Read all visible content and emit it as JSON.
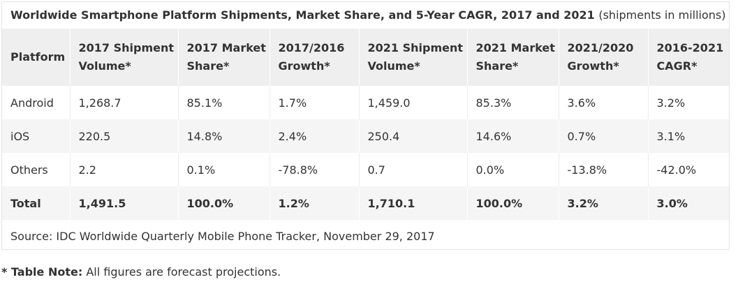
{
  "table": {
    "title": "Worldwide Smartphone Platform Shipments, Market Share, and 5-Year CAGR, 2017 and 2021",
    "title_suffix": "(shipments in millions)",
    "columns": [
      "Platform",
      "2017 Shipment Volume*",
      "2017 Market Share*",
      "2017/2016 Growth*",
      "2021 Shipment Volume*",
      "2021 Market Share*",
      "2021/2020 Growth*",
      "2016-2021 CAGR*"
    ],
    "rows": [
      [
        "Android",
        "1,268.7",
        "85.1%",
        "1.7%",
        "1,459.0",
        "85.3%",
        "3.6%",
        "3.2%"
      ],
      [
        "iOS",
        "220.5",
        "14.8%",
        "2.4%",
        "250.4",
        "14.6%",
        "0.7%",
        "3.1%"
      ],
      [
        "Others",
        "2.2",
        "0.1%",
        "-78.8%",
        "0.7",
        "0.0%",
        "-13.8%",
        "-42.0%"
      ],
      [
        "Total",
        "1,491.5",
        "100.0%",
        "1.2%",
        "1,710.1",
        "100.0%",
        "3.2%",
        "3.0%"
      ]
    ],
    "source": "Source: IDC Worldwide Quarterly Mobile Phone Tracker, November 29, 2017"
  },
  "note": {
    "label": "* Table Note:",
    "text": " All figures are forecast projections."
  },
  "colors": {
    "header_bg": "#efefef",
    "row_shade": "#f5f5f5",
    "text": "#333333",
    "border": "#e3e3e3"
  }
}
